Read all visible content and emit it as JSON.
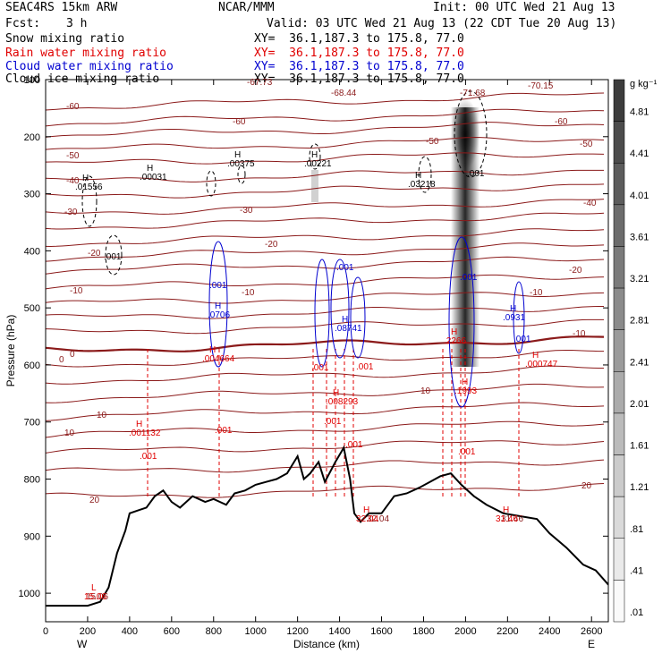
{
  "header": {
    "model": "SEAC4RS 15km ARW",
    "org": "NCAR/MMM",
    "init": "Init: 00 UTC Wed 21 Aug 13",
    "fcst_label": "Fcst:",
    "fcst_value": "3 h",
    "valid": "Valid: 03 UTC Wed 21 Aug 13 (22 CDT Tue 20 Aug 13)",
    "fields": [
      {
        "name": "Snow mixing ratio",
        "xy": "XY=  36.1,187.3 to 175.8, 77.0",
        "color": "#000000"
      },
      {
        "name": "Rain water mixing ratio",
        "xy": "XY=  36.1,187.3 to 175.8, 77.0",
        "color": "#e00000"
      },
      {
        "name": "Cloud water mixing ratio",
        "xy": "XY=  36.1,187.3 to 175.8, 77.0",
        "color": "#0000d0"
      },
      {
        "name": "Cloud ice mixing ratio",
        "xy": "XY=  36.1,187.3 to 175.8, 77.0",
        "color": "#000000"
      }
    ]
  },
  "chart_data": {
    "type": "cross-section",
    "xlabel": "Distance (km)",
    "ylabel": "Pressure (hPa)",
    "xlim": [
      0,
      2680
    ],
    "ylim": [
      1050,
      100
    ],
    "x_ticks": [
      0,
      200,
      400,
      600,
      800,
      1000,
      1200,
      1400,
      1600,
      1800,
      2000,
      2200,
      2400,
      2600
    ],
    "y_ticks": [
      100,
      200,
      300,
      400,
      500,
      600,
      700,
      800,
      900,
      1000
    ],
    "x_end_labels": {
      "left": "W",
      "right": "E"
    },
    "colorbar": {
      "unit": "g kg⁻¹",
      "labels": [
        "4.81",
        "4.41",
        "4.01",
        "3.61",
        "3.21",
        "2.81",
        "2.41",
        "2.01",
        "1.61",
        "1.21",
        ".81",
        ".41",
        ".01"
      ]
    },
    "temperature_labels": [
      "-60",
      "-50",
      "-40",
      "-30",
      "-20",
      "-10",
      "0",
      "10",
      "20",
      "-67.73",
      "-68.44",
      "-71.68",
      "-70.15",
      "31.46",
      "32.04",
      "15.06"
    ],
    "temperature_contours": [
      -60,
      -50,
      -40,
      -30,
      -20,
      -10,
      0,
      10,
      20
    ],
    "extrema_labels": [
      {
        "kind": "H",
        "value": ".01556",
        "color": "#000000"
      },
      {
        "kind": "H",
        "value": ".00031",
        "color": "#000000"
      },
      {
        "kind": "H",
        "value": ".00375",
        "color": "#000000"
      },
      {
        "kind": "H",
        "value": ".00221",
        "color": "#000000"
      },
      {
        "kind": "H",
        "value": ".03218",
        "color": "#000000"
      },
      {
        "kind": "H",
        "value": ".0706",
        "color": "#0000d0"
      },
      {
        "kind": "H",
        "value": ".0931",
        "color": "#0000d0"
      },
      {
        "kind": "H",
        "value": ".08741",
        "color": "#0000d0"
      },
      {
        "kind": "H",
        "value": ".004664",
        "color": "#e00000"
      },
      {
        "kind": "H",
        "value": ".001132",
        "color": "#e00000"
      },
      {
        "kind": "H",
        "value": ".008293",
        "color": "#e00000"
      },
      {
        "kind": "H",
        "value": ".1993",
        "color": "#e00000"
      },
      {
        "kind": "H",
        "value": ".000747",
        "color": "#e00000"
      },
      {
        "kind": "H",
        "value": ".2266",
        "color": "#e00000"
      },
      {
        "kind": "L",
        "value": "15.06",
        "color": "#e00000"
      },
      {
        "kind": "H",
        "value": "32.04",
        "color": "#e00000"
      },
      {
        "kind": "H",
        "value": "31.46",
        "color": "#e00000"
      }
    ]
  }
}
